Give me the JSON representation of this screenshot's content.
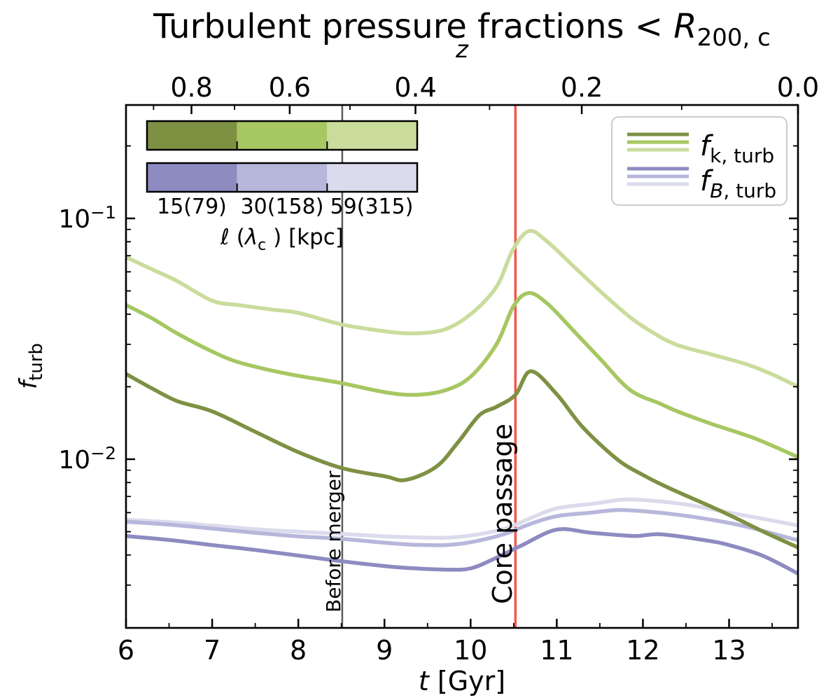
{
  "chart_data": {
    "type": "line",
    "title": {
      "prefix": "Turbulent pressure fractions  < ",
      "var": "R",
      "sub": "200, c"
    },
    "axes": {
      "xlabel": {
        "var": "t",
        "unit": " [Gyr]"
      },
      "ylabel": {
        "var": "f",
        "sub": "turb"
      },
      "top_label": "z",
      "xlim": [
        6,
        13.8
      ],
      "ylim": [
        0.002,
        0.3
      ],
      "yscale": "log",
      "grid": false,
      "x_major_ticks": [
        6,
        7,
        8,
        9,
        10,
        11,
        12,
        13
      ],
      "x_minor_ticks": [
        6.5,
        7.5,
        8.5,
        9.5,
        10.5,
        11.5,
        12.5,
        13.5
      ],
      "y_major_ticks": [
        {
          "value": 0.1,
          "base": "10",
          "exp": "−1"
        },
        {
          "value": 0.01,
          "base": "10",
          "exp": "−2"
        }
      ],
      "y_minor_ticks": [
        0.2,
        0.09,
        0.08,
        0.07,
        0.06,
        0.05,
        0.04,
        0.03,
        0.02,
        0.009,
        0.008,
        0.007,
        0.006,
        0.005,
        0.004,
        0.003
      ],
      "top_ticks": [
        {
          "label": "0.8",
          "t": 6.76
        },
        {
          "label": "0.6",
          "t": 7.9
        },
        {
          "label": "0.4",
          "t": 9.36
        },
        {
          "label": "0.2",
          "t": 11.29
        },
        {
          "label": "0.0",
          "t": 13.8
        }
      ],
      "top_minor_ticks": [
        6.32,
        7.26,
        8.6,
        10.22,
        12.45
      ]
    },
    "vlines": [
      {
        "t": 8.51,
        "color": "#5a5a5a",
        "width": 2.5,
        "label": "Before merger"
      },
      {
        "t": 10.52,
        "color": "#f4564e",
        "width": 3.5,
        "label": "Core passage"
      }
    ],
    "series": [
      {
        "name": "f_B,turb scale 59(315) kpc",
        "color": "#dcdbed",
        "x": [
          6.0,
          6.5,
          7.0,
          7.5,
          8.0,
          8.5,
          9.0,
          9.3,
          9.7,
          10.0,
          10.4,
          10.7,
          11.0,
          11.45,
          11.8,
          12.2,
          12.6,
          13.0,
          13.4,
          13.8
        ],
        "y": [
          0.0056,
          0.00548,
          0.0053,
          0.00512,
          0.005,
          0.0049,
          0.00478,
          0.00474,
          0.00472,
          0.00482,
          0.00515,
          0.0057,
          0.00625,
          0.00655,
          0.0068,
          0.00668,
          0.0064,
          0.006,
          0.00565,
          0.0053
        ]
      },
      {
        "name": "f_B,turb scale 30(158) kpc",
        "color": "#b7b6db",
        "x": [
          6.0,
          6.5,
          7.0,
          7.5,
          8.0,
          8.5,
          9.0,
          9.3,
          9.7,
          10.0,
          10.4,
          10.7,
          11.0,
          11.4,
          11.7,
          12.0,
          12.4,
          12.8,
          13.2,
          13.8
        ],
        "y": [
          0.0055,
          0.00535,
          0.00515,
          0.00495,
          0.00478,
          0.00467,
          0.0045,
          0.00442,
          0.0044,
          0.00452,
          0.0049,
          0.0054,
          0.0058,
          0.006,
          0.00615,
          0.00608,
          0.00588,
          0.0056,
          0.00525,
          0.0046
        ]
      },
      {
        "name": "f_B,turb scale 15(79) kpc",
        "color": "#8e8bc1",
        "x": [
          6.0,
          6.5,
          7.0,
          7.5,
          8.0,
          8.5,
          9.0,
          9.3,
          9.7,
          10.0,
          10.3,
          10.6,
          11.0,
          11.4,
          11.9,
          12.2,
          12.7,
          13.0,
          13.4,
          13.8
        ],
        "y": [
          0.0048,
          0.00462,
          0.0044,
          0.0042,
          0.00398,
          0.00377,
          0.0036,
          0.00353,
          0.00348,
          0.00352,
          0.0039,
          0.0044,
          0.0051,
          0.00495,
          0.0048,
          0.00488,
          0.00462,
          0.0044,
          0.00396,
          0.00335
        ]
      },
      {
        "name": "f_k,turb scale 59(315) kpc",
        "color": "#cadc9c",
        "x": [
          6.0,
          6.3,
          6.6,
          7.0,
          7.3,
          7.7,
          8.0,
          8.5,
          9.0,
          9.35,
          9.7,
          10.0,
          10.3,
          10.49,
          10.68,
          10.9,
          11.2,
          11.5,
          11.85,
          12.15,
          12.4,
          12.8,
          13.2,
          13.5,
          13.8
        ],
        "y": [
          0.069,
          0.0615,
          0.0548,
          0.0455,
          0.0437,
          0.0418,
          0.0405,
          0.0363,
          0.034,
          0.0333,
          0.0346,
          0.04,
          0.052,
          0.074,
          0.0887,
          0.0795,
          0.063,
          0.05,
          0.0389,
          0.033,
          0.0298,
          0.0272,
          0.0248,
          0.0225,
          0.02
        ]
      },
      {
        "name": "f_k,turb scale 30(158) kpc",
        "color": "#a7c762",
        "x": [
          6.0,
          6.3,
          6.6,
          7.0,
          7.3,
          7.7,
          8.0,
          8.5,
          9.0,
          9.35,
          9.7,
          10.0,
          10.3,
          10.5,
          10.68,
          10.9,
          11.2,
          11.5,
          11.85,
          12.2,
          12.4,
          12.8,
          13.3,
          13.8
        ],
        "y": [
          0.0437,
          0.0385,
          0.0332,
          0.028,
          0.0253,
          0.0233,
          0.0222,
          0.0207,
          0.019,
          0.0185,
          0.0193,
          0.022,
          0.03,
          0.0433,
          0.049,
          0.044,
          0.034,
          0.0262,
          0.0194,
          0.017,
          0.0158,
          0.014,
          0.0122,
          0.0102
        ]
      },
      {
        "name": "f_k,turb scale 15(79) kpc",
        "color": "#7e9143",
        "x": [
          6.0,
          6.3,
          6.6,
          7.0,
          7.5,
          8.0,
          8.5,
          9.0,
          9.25,
          9.6,
          9.85,
          10.1,
          10.3,
          10.52,
          10.7,
          11.0,
          11.3,
          11.7,
          12.0,
          12.3,
          12.9,
          13.4,
          13.8
        ],
        "y": [
          0.0226,
          0.0197,
          0.0174,
          0.0158,
          0.013,
          0.0107,
          0.0092,
          0.0085,
          0.0082,
          0.0093,
          0.0117,
          0.0152,
          0.0165,
          0.0185,
          0.0232,
          0.0186,
          0.0136,
          0.01,
          0.0086,
          0.0076,
          0.0061,
          0.005,
          0.0043
        ]
      }
    ],
    "legend": [
      {
        "var": "f",
        "sub_var": "k",
        "sub_rest": ", turb",
        "colors": [
          "#7e9143",
          "#a7c762",
          "#cadc9c"
        ]
      },
      {
        "var": "f",
        "sub_var": "B",
        "sub_rest": ", turb",
        "colors": [
          "#8e8bc1",
          "#b7b6db",
          "#dcdbed"
        ]
      }
    ],
    "scale_bar": {
      "rows": [
        {
          "colors": [
            "#7e9143",
            "#a7c762",
            "#cadc9c"
          ]
        },
        {
          "colors": [
            "#8e8bc1",
            "#b7b6db",
            "#dcdbed"
          ]
        }
      ],
      "tick_labels": [
        "15(79)",
        "30(158)",
        "59(315)"
      ],
      "label": {
        "prefix": "ℓ (",
        "lambda": "λ",
        "lambda_sub": "c",
        "suffix": " ) [kpc]"
      }
    }
  }
}
